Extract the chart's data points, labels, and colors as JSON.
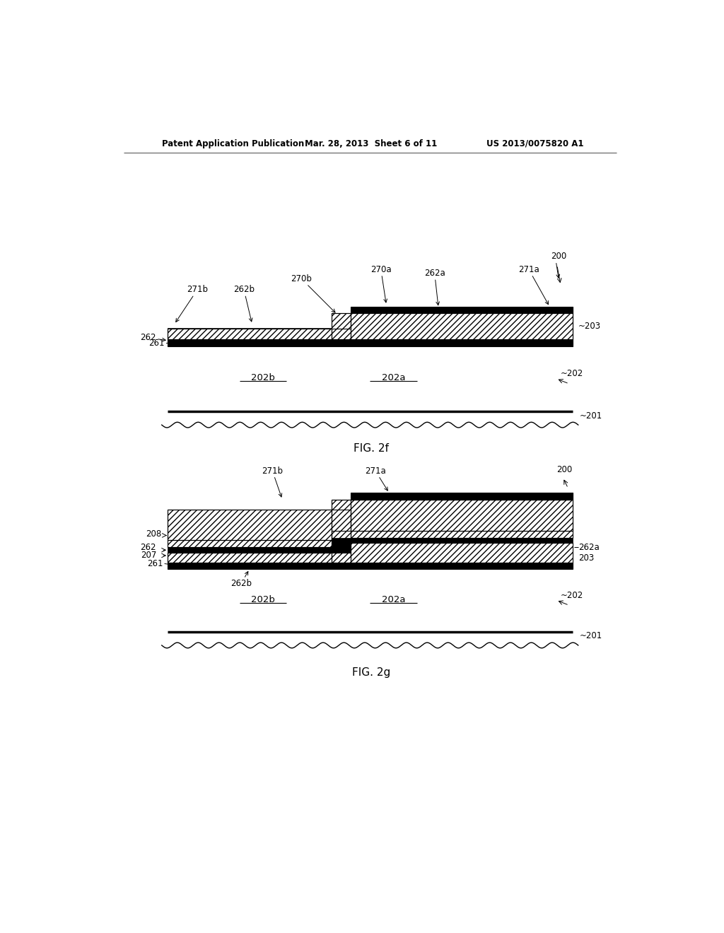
{
  "fig_width": 10.24,
  "fig_height": 13.2,
  "bg_color": "#ffffff",
  "header_text_left": "Patent Application Publication",
  "header_text_mid": "Mar. 28, 2013  Sheet 6 of 11",
  "header_text_right": "US 2013/0075820 A1",
  "fig2f_label": "FIG. 2f",
  "fig2g_label": "FIG. 2g",
  "label_fontsize": 8.5,
  "fig_label_fontsize": 11,
  "line_color": "#000000",
  "hatch": "////",
  "lw_thick": 2.0,
  "lw_mid": 1.0,
  "lw_thin": 0.7
}
